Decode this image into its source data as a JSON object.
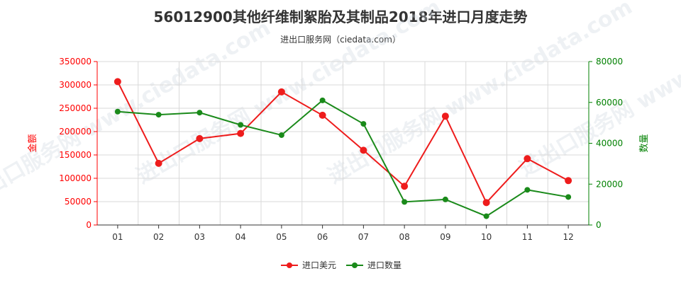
{
  "chart_data": {
    "type": "line",
    "title": "56012900其他纤维制絮胎及其制品2018年进口月度走势",
    "subtitle": "进出口服务网（ciedata.com）",
    "watermark": "进出口服务网 www.ciedata.com",
    "categories": [
      "01",
      "02",
      "03",
      "04",
      "05",
      "06",
      "07",
      "08",
      "09",
      "10",
      "11",
      "12"
    ],
    "y_left": {
      "label": "金额",
      "ticks": [
        "350000",
        "300000",
        "250000",
        "200000",
        "150000",
        "100000",
        "50000",
        "0"
      ],
      "ylim": [
        0,
        350000
      ],
      "color": "#ff0000"
    },
    "y_right": {
      "label": "数量",
      "ticks": [
        "80000",
        "60000",
        "40000",
        "20000",
        "0"
      ],
      "ylim": [
        0,
        80000
      ],
      "color": "#008000"
    },
    "series": [
      {
        "name": "进口美元",
        "axis": "left",
        "color": "#ee1c1c",
        "values": [
          307000,
          132000,
          185000,
          196000,
          285000,
          235000,
          160000,
          83000,
          233000,
          48000,
          142000,
          95000
        ]
      },
      {
        "name": "进口数量",
        "axis": "right",
        "color": "#1a8a1a",
        "values": [
          55500,
          54000,
          55000,
          49000,
          44000,
          61000,
          49500,
          11300,
          12500,
          4300,
          17200,
          13700
        ]
      }
    ],
    "grid": true,
    "legend_position": "bottom-center"
  }
}
